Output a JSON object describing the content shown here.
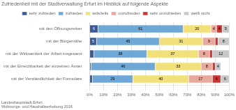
{
  "chart_data": {
    "type": "bar",
    "orientation": "horizontal",
    "stacked": true,
    "title": "Zufriedenheit mit der Stadtverwaltung Erfurt im Hinblick auf folgende Aspekte",
    "annotations": [
      "Landeshauptstadt Erfurt",
      "Wohnungs- und Haushaltserhebung 2016"
    ],
    "categories": [
      "mit den Öffnungszeiten",
      "mit der Bürgernähe",
      "mit der Wirksamkeit der Arbeit insgesamt",
      "mit der Erreichbarkeit der einzelnen Ämter",
      "mit der Verständlichkeit der Formulare"
    ],
    "series": [
      {
        "name": "sehr zufrieden",
        "color": "#3b5998",
        "values": [
          6,
          5,
          3,
          1,
          2
        ],
        "value_labels": [
          "6",
          "5",
          null,
          null,
          null
        ]
      },
      {
        "name": "zufrieden",
        "color": "#6fa8d6",
        "values": [
          61,
          45,
          38,
          46,
          29
        ],
        "value_labels": [
          "61",
          "45",
          "38",
          "46",
          "29"
        ]
      },
      {
        "name": "teils/teils",
        "color": "#f2e07a",
        "values": [
          20,
          31,
          37,
          33,
          40
        ],
        "value_labels": [
          "20",
          "31",
          "37",
          "33",
          "40"
        ]
      },
      {
        "name": "unzufrieden",
        "color": "#e8a89b",
        "values": [
          4,
          9,
          8,
          8,
          17
        ],
        "value_labels": [
          "4",
          "9",
          "8",
          "8",
          "17"
        ]
      },
      {
        "name": "sehr unzufrieden",
        "color": "#cc3333",
        "values": [
          4,
          2,
          2,
          2,
          6
        ],
        "value_labels": [
          "4",
          null,
          null,
          null,
          "6"
        ]
      },
      {
        "name": "weiß nicht",
        "color": "#c8c8c8",
        "values": [
          5,
          8,
          12,
          4,
          6
        ],
        "value_labels": [
          "5",
          "8",
          "12",
          "4",
          "6"
        ]
      }
    ],
    "xlim": [
      0,
      100
    ],
    "xticks": [
      {
        "value": 0,
        "label": "0%"
      },
      {
        "value": 10,
        "label": "10%"
      },
      {
        "value": 20,
        "label": "20%"
      },
      {
        "value": 30,
        "label": "30%"
      },
      {
        "value": 40,
        "label": "40%"
      },
      {
        "value": 50,
        "label": "50%"
      },
      {
        "value": 60,
        "label": "60%"
      },
      {
        "value": 70,
        "label": "70%"
      },
      {
        "value": 80,
        "label": "80%"
      },
      {
        "value": 90,
        "label": "90%"
      },
      {
        "value": 100,
        "label": "100%"
      }
    ],
    "grid": true,
    "legend": "top",
    "data_labels": true
  }
}
